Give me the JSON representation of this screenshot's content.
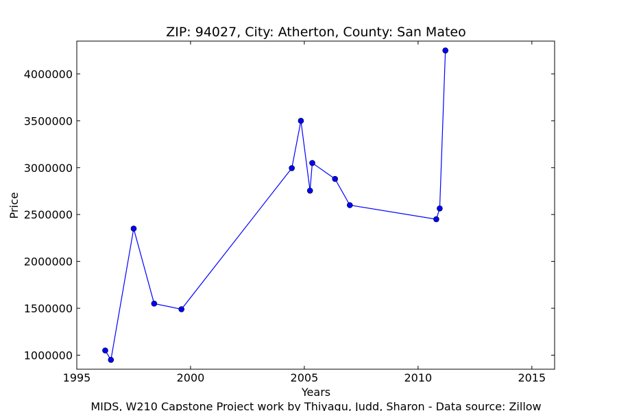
{
  "chart_data": {
    "type": "line",
    "title": "ZIP: 94027, City: Atherton, County: San Mateo",
    "xlabel": "Years",
    "ylabel": "Price",
    "xlim": [
      1995,
      2016
    ],
    "ylim": [
      850000,
      4350000
    ],
    "x_ticks": [
      1995,
      2000,
      2005,
      2010,
      2015
    ],
    "y_ticks": [
      1000000,
      1500000,
      2000000,
      2500000,
      3000000,
      3500000,
      4000000
    ],
    "grid": false,
    "series": [
      {
        "color": "#0000ff",
        "marker": "circle",
        "x": [
          1996.25,
          1996.5,
          1997.5,
          1998.4,
          1999.6,
          2004.45,
          2004.85,
          2005.25,
          2005.35,
          2006.35,
          2007.0,
          2010.8,
          2010.95,
          2011.2
        ],
        "y": [
          1050000,
          950000,
          2350000,
          1550000,
          1490000,
          2995000,
          3500000,
          2755000,
          3050000,
          2880000,
          2600000,
          2450000,
          2565000,
          4250000
        ]
      }
    ],
    "footer": "MIDS, W210 Capstone Project work by Thiyagu, Judd, Sharon  -  Data source: Zillow"
  }
}
